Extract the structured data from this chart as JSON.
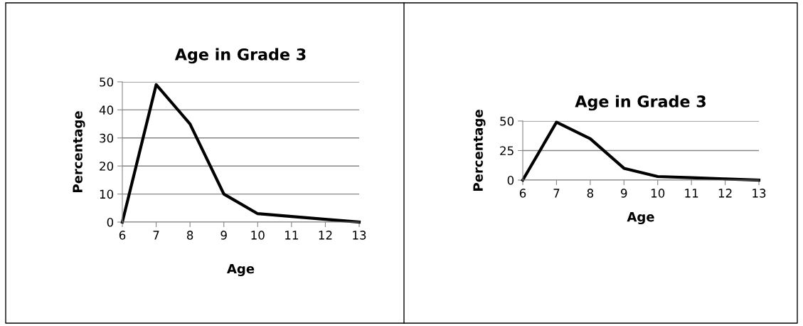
{
  "chart_data": [
    {
      "type": "line",
      "title": "Age in Grade 3",
      "xlabel": "Age",
      "ylabel": "Percentage",
      "x": [
        6,
        7,
        8,
        9,
        10,
        11,
        12,
        13
      ],
      "series": [
        {
          "color": "#000000",
          "values": [
            0,
            49,
            35,
            10,
            3,
            2,
            1,
            0
          ]
        }
      ],
      "xlim": [
        6,
        13
      ],
      "xticks": [
        6,
        7,
        8,
        9,
        10,
        11,
        12,
        13
      ],
      "ylim": [
        0,
        50
      ],
      "yticks": [
        0,
        10,
        20,
        30,
        40,
        50
      ],
      "grid": "y",
      "legend": false,
      "marker": "none",
      "line_style": "solid"
    },
    {
      "type": "line",
      "title": "Age in Grade 3",
      "xlabel": "Age",
      "ylabel": "Percentage",
      "x": [
        6,
        7,
        8,
        9,
        10,
        11,
        12,
        13
      ],
      "series": [
        {
          "color": "#000000",
          "values": [
            0,
            49,
            35,
            10,
            3,
            2,
            1,
            0
          ]
        }
      ],
      "xlim": [
        6,
        13
      ],
      "xticks": [
        6,
        7,
        8,
        9,
        10,
        11,
        12,
        13
      ],
      "ylim": [
        0,
        50
      ],
      "yticks": [
        0,
        25,
        50
      ],
      "grid": "y",
      "legend": false,
      "marker": "none",
      "line_style": "solid"
    }
  ]
}
